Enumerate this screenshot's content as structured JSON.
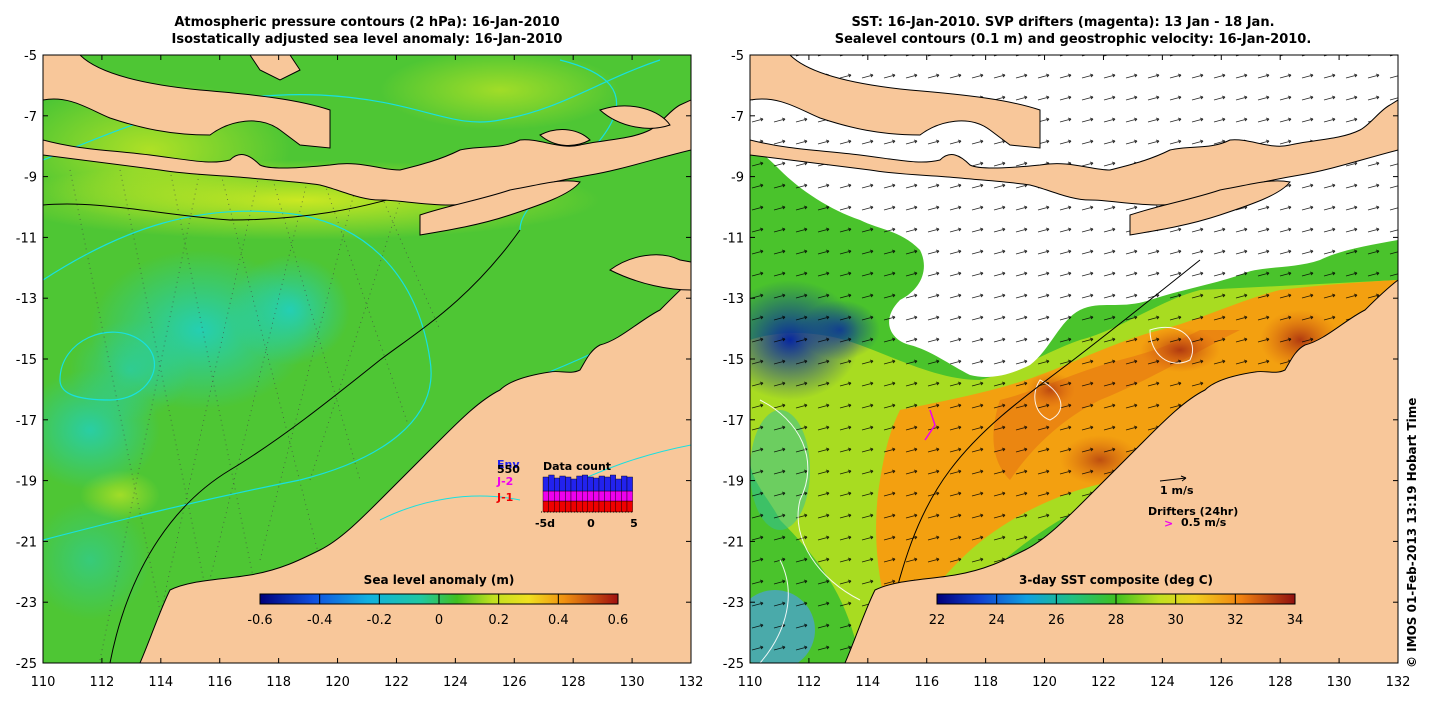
{
  "left_panel": {
    "title_line1": "Atmospheric pressure contours (2 hPa): 16-Jan-2010",
    "title_line2": "Isostatically adjusted sea level anomaly: 16-Jan-2010",
    "colorbar_label": "Sea level anomaly (m)",
    "colorbar_ticks": [
      "-0.6",
      "-0.4",
      "-0.2",
      "0",
      "0.2",
      "0.4",
      "0.6"
    ],
    "data_count": {
      "title": "Data count",
      "legend": [
        {
          "label": "Env",
          "color": "#2222ee"
        },
        {
          "label": "J-2",
          "color": "#ee00ee"
        },
        {
          "label": "J-1",
          "color": "#ee0000"
        }
      ],
      "value_label": "550",
      "x_ticks": [
        "-5d",
        "0",
        "5"
      ]
    }
  },
  "right_panel": {
    "title_line1": "SST: 16-Jan-2010. SVP drifters (magenta): 13 Jan - 18 Jan.",
    "title_line2": "Sealevel contours (0.1 m) and geostrophic velocity: 16-Jan-2010.",
    "colorbar_label": "3-day SST composite (deg C)",
    "colorbar_ticks": [
      "22",
      "24",
      "26",
      "28",
      "30",
      "32",
      "34"
    ],
    "velocity_key": "1 m/s",
    "drifter_key_title": "Drifters (24hr)",
    "drifter_key_value": "0.5 m/s"
  },
  "axes": {
    "x_ticks": [
      "110",
      "112",
      "114",
      "116",
      "118",
      "120",
      "122",
      "124",
      "126",
      "128",
      "130",
      "132"
    ],
    "y_ticks": [
      "-5",
      "-7",
      "-9",
      "-11",
      "-13",
      "-15",
      "-17",
      "-19",
      "-21",
      "-23",
      "-25"
    ]
  },
  "credit": "© IMOS 01-Feb-2013 13:19 Hobart Time",
  "colors": {
    "land": "#f8c79a",
    "ocean_green": "#49c534",
    "ocean_yellowgreen": "#a9e02a",
    "anomaly_cyan": "#2fc6b0",
    "contour_cyan": "#19e0e0",
    "sst_orange": "#f3a010",
    "sst_red": "#c84810"
  }
}
